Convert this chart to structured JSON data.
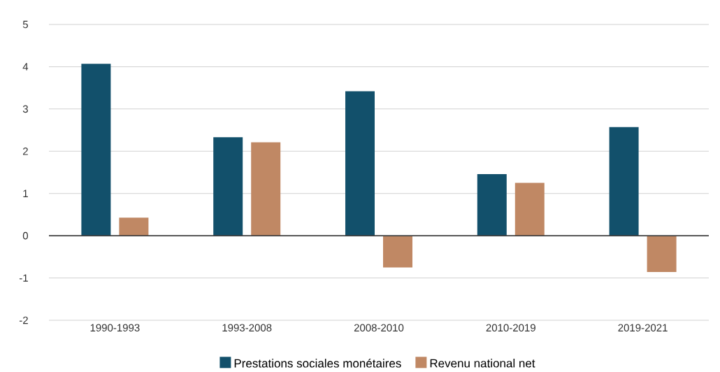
{
  "chart_data": {
    "type": "bar",
    "categories": [
      "1990-1993",
      "1993-2008",
      "2008-2010",
      "2010-2019",
      "2019-2021"
    ],
    "series": [
      {
        "name": "Prestations sociales monétaires",
        "color": "#12506b",
        "values": [
          4.07,
          2.33,
          3.42,
          1.46,
          2.57
        ]
      },
      {
        "name": "Revenu national net",
        "color": "#c08864",
        "values": [
          0.43,
          2.21,
          -0.75,
          1.25,
          -0.86
        ]
      }
    ],
    "ylim": [
      -2,
      5
    ],
    "yticks": [
      -2,
      -1,
      0,
      1,
      2,
      3,
      4,
      5
    ],
    "grid": "y",
    "legend": "bottom"
  }
}
